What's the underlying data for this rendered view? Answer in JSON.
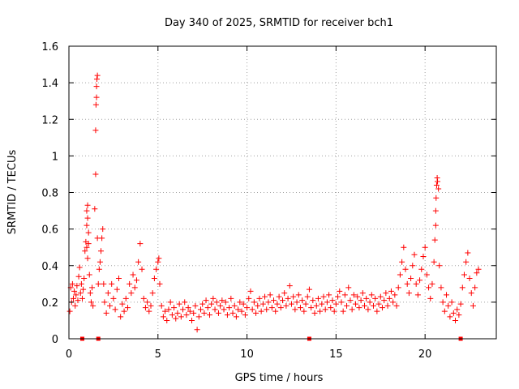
{
  "chart_data": {
    "type": "scatter",
    "title": "Day 340 of 2025, SRMTID for receiver bch1",
    "xlabel": "GPS time / hours",
    "ylabel": "SRMTID / TECUs",
    "xlim": [
      0,
      24
    ],
    "ylim": [
      0,
      1.6
    ],
    "xticks": [
      0,
      5,
      10,
      15,
      20
    ],
    "xtick_labels": [
      "0",
      "5",
      "10",
      "15",
      "20"
    ],
    "yticks": [
      0,
      0.2,
      0.4,
      0.6,
      0.8,
      1.0,
      1.2,
      1.4,
      1.6
    ],
    "ytick_labels": [
      "0",
      "0.2",
      "0.4",
      "0.6",
      "0.8",
      "1",
      "1.2",
      "1.4",
      "1.6"
    ],
    "grid": true,
    "marker": "plus",
    "color": "#ff0000",
    "markers_on_axis_x": [
      0.75,
      1.65,
      13.5,
      22.0
    ],
    "series": [
      {
        "name": "SRMTID",
        "points": [
          [
            0.05,
            0.15
          ],
          [
            0.1,
            0.28
          ],
          [
            0.15,
            0.2
          ],
          [
            0.2,
            0.3
          ],
          [
            0.25,
            0.22
          ],
          [
            0.3,
            0.26
          ],
          [
            0.35,
            0.18
          ],
          [
            0.4,
            0.24
          ],
          [
            0.45,
            0.29
          ],
          [
            0.5,
            0.21
          ],
          [
            0.55,
            0.34
          ],
          [
            0.6,
            0.39
          ],
          [
            0.65,
            0.25
          ],
          [
            0.7,
            0.3
          ],
          [
            0.75,
            0.22
          ],
          [
            0.8,
            0.27
          ],
          [
            0.85,
            0.33
          ],
          [
            0.9,
            0.48
          ],
          [
            0.95,
            0.53
          ],
          [
            1.0,
            0.62
          ],
          [
            1.0,
            0.7
          ],
          [
            1.05,
            0.73
          ],
          [
            1.05,
            0.66
          ],
          [
            1.1,
            0.58
          ],
          [
            1.1,
            0.52
          ],
          [
            1.0,
            0.5
          ],
          [
            1.05,
            0.44
          ],
          [
            1.15,
            0.35
          ],
          [
            1.2,
            0.25
          ],
          [
            1.25,
            0.2
          ],
          [
            1.3,
            0.28
          ],
          [
            1.35,
            0.18
          ],
          [
            1.45,
            0.71
          ],
          [
            1.5,
            0.9
          ],
          [
            1.5,
            1.14
          ],
          [
            1.52,
            1.28
          ],
          [
            1.55,
            1.32
          ],
          [
            1.55,
            1.38
          ],
          [
            1.57,
            1.42
          ],
          [
            1.6,
            1.44
          ],
          [
            1.6,
            0.55
          ],
          [
            1.65,
            0.3
          ],
          [
            1.7,
            0.38
          ],
          [
            1.75,
            0.42
          ],
          [
            1.8,
            0.48
          ],
          [
            1.85,
            0.55
          ],
          [
            1.9,
            0.6
          ],
          [
            1.95,
            0.3
          ],
          [
            2.0,
            0.2
          ],
          [
            2.1,
            0.14
          ],
          [
            2.2,
            0.25
          ],
          [
            2.3,
            0.18
          ],
          [
            2.4,
            0.3
          ],
          [
            2.5,
            0.22
          ],
          [
            2.6,
            0.16
          ],
          [
            2.7,
            0.27
          ],
          [
            2.8,
            0.33
          ],
          [
            2.9,
            0.12
          ],
          [
            3.0,
            0.19
          ],
          [
            3.1,
            0.15
          ],
          [
            3.2,
            0.22
          ],
          [
            3.3,
            0.17
          ],
          [
            3.4,
            0.3
          ],
          [
            3.5,
            0.25
          ],
          [
            3.6,
            0.35
          ],
          [
            3.7,
            0.28
          ],
          [
            3.8,
            0.32
          ],
          [
            3.9,
            0.42
          ],
          [
            4.0,
            0.52
          ],
          [
            4.1,
            0.38
          ],
          [
            4.2,
            0.22
          ],
          [
            4.3,
            0.17
          ],
          [
            4.4,
            0.2
          ],
          [
            4.5,
            0.15
          ],
          [
            4.6,
            0.18
          ],
          [
            4.7,
            0.25
          ],
          [
            4.8,
            0.33
          ],
          [
            4.9,
            0.38
          ],
          [
            5.0,
            0.42
          ],
          [
            5.05,
            0.44
          ],
          [
            5.1,
            0.3
          ],
          [
            5.2,
            0.18
          ],
          [
            5.3,
            0.12
          ],
          [
            5.4,
            0.15
          ],
          [
            5.5,
            0.1
          ],
          [
            5.6,
            0.16
          ],
          [
            5.7,
            0.2
          ],
          [
            5.8,
            0.13
          ],
          [
            5.9,
            0.17
          ],
          [
            6.0,
            0.11
          ],
          [
            6.1,
            0.14
          ],
          [
            6.2,
            0.19
          ],
          [
            6.3,
            0.12
          ],
          [
            6.4,
            0.16
          ],
          [
            6.5,
            0.2
          ],
          [
            6.6,
            0.13
          ],
          [
            6.7,
            0.17
          ],
          [
            6.8,
            0.15
          ],
          [
            6.9,
            0.1
          ],
          [
            7.0,
            0.14
          ],
          [
            7.1,
            0.18
          ],
          [
            7.2,
            0.05
          ],
          [
            7.3,
            0.12
          ],
          [
            7.4,
            0.16
          ],
          [
            7.5,
            0.19
          ],
          [
            7.6,
            0.14
          ],
          [
            7.7,
            0.21
          ],
          [
            7.8,
            0.17
          ],
          [
            7.9,
            0.13
          ],
          [
            8.0,
            0.19
          ],
          [
            8.1,
            0.22
          ],
          [
            8.2,
            0.16
          ],
          [
            8.3,
            0.2
          ],
          [
            8.4,
            0.14
          ],
          [
            8.5,
            0.18
          ],
          [
            8.6,
            0.21
          ],
          [
            8.7,
            0.16
          ],
          [
            8.8,
            0.2
          ],
          [
            8.9,
            0.13
          ],
          [
            9.0,
            0.17
          ],
          [
            9.1,
            0.22
          ],
          [
            9.2,
            0.14
          ],
          [
            9.3,
            0.18
          ],
          [
            9.4,
            0.12
          ],
          [
            9.5,
            0.16
          ],
          [
            9.6,
            0.2
          ],
          [
            9.7,
            0.15
          ],
          [
            9.8,
            0.19
          ],
          [
            9.9,
            0.13
          ],
          [
            10.0,
            0.17
          ],
          [
            10.1,
            0.22
          ],
          [
            10.2,
            0.26
          ],
          [
            10.3,
            0.16
          ],
          [
            10.4,
            0.2
          ],
          [
            10.5,
            0.14
          ],
          [
            10.6,
            0.18
          ],
          [
            10.7,
            0.22
          ],
          [
            10.8,
            0.15
          ],
          [
            10.9,
            0.19
          ],
          [
            11.0,
            0.23
          ],
          [
            11.1,
            0.16
          ],
          [
            11.2,
            0.2
          ],
          [
            11.3,
            0.24
          ],
          [
            11.4,
            0.17
          ],
          [
            11.5,
            0.21
          ],
          [
            11.6,
            0.15
          ],
          [
            11.7,
            0.19
          ],
          [
            11.8,
            0.23
          ],
          [
            11.9,
            0.17
          ],
          [
            12.0,
            0.21
          ],
          [
            12.1,
            0.25
          ],
          [
            12.2,
            0.18
          ],
          [
            12.3,
            0.22
          ],
          [
            12.4,
            0.29
          ],
          [
            12.5,
            0.19
          ],
          [
            12.6,
            0.23
          ],
          [
            12.7,
            0.16
          ],
          [
            12.8,
            0.2
          ],
          [
            12.9,
            0.24
          ],
          [
            13.0,
            0.17
          ],
          [
            13.1,
            0.21
          ],
          [
            13.2,
            0.15
          ],
          [
            13.3,
            0.19
          ],
          [
            13.4,
            0.23
          ],
          [
            13.5,
            0.27
          ],
          [
            13.6,
            0.17
          ],
          [
            13.7,
            0.21
          ],
          [
            13.8,
            0.14
          ],
          [
            13.9,
            0.18
          ],
          [
            14.0,
            0.22
          ],
          [
            14.1,
            0.15
          ],
          [
            14.2,
            0.19
          ],
          [
            14.3,
            0.23
          ],
          [
            14.4,
            0.16
          ],
          [
            14.5,
            0.2
          ],
          [
            14.6,
            0.24
          ],
          [
            14.7,
            0.17
          ],
          [
            14.8,
            0.21
          ],
          [
            14.9,
            0.15
          ],
          [
            15.0,
            0.19
          ],
          [
            15.1,
            0.23
          ],
          [
            15.2,
            0.26
          ],
          [
            15.3,
            0.2
          ],
          [
            15.4,
            0.15
          ],
          [
            15.5,
            0.24
          ],
          [
            15.6,
            0.18
          ],
          [
            15.7,
            0.28
          ],
          [
            15.8,
            0.21
          ],
          [
            15.9,
            0.16
          ],
          [
            16.0,
            0.24
          ],
          [
            16.1,
            0.19
          ],
          [
            16.2,
            0.23
          ],
          [
            16.3,
            0.17
          ],
          [
            16.4,
            0.21
          ],
          [
            16.5,
            0.25
          ],
          [
            16.6,
            0.18
          ],
          [
            16.7,
            0.22
          ],
          [
            16.8,
            0.16
          ],
          [
            16.9,
            0.2
          ],
          [
            17.0,
            0.24
          ],
          [
            17.1,
            0.18
          ],
          [
            17.2,
            0.22
          ],
          [
            17.3,
            0.15
          ],
          [
            17.4,
            0.19
          ],
          [
            17.5,
            0.23
          ],
          [
            17.6,
            0.17
          ],
          [
            17.7,
            0.21
          ],
          [
            17.8,
            0.25
          ],
          [
            17.9,
            0.18
          ],
          [
            18.0,
            0.22
          ],
          [
            18.1,
            0.26
          ],
          [
            18.2,
            0.2
          ],
          [
            18.3,
            0.24
          ],
          [
            18.4,
            0.18
          ],
          [
            18.5,
            0.28
          ],
          [
            18.6,
            0.35
          ],
          [
            18.7,
            0.42
          ],
          [
            18.8,
            0.5
          ],
          [
            18.9,
            0.38
          ],
          [
            19.0,
            0.3
          ],
          [
            19.1,
            0.25
          ],
          [
            19.2,
            0.33
          ],
          [
            19.3,
            0.4
          ],
          [
            19.4,
            0.46
          ],
          [
            19.5,
            0.3
          ],
          [
            19.6,
            0.24
          ],
          [
            19.7,
            0.32
          ],
          [
            19.8,
            0.38
          ],
          [
            19.9,
            0.45
          ],
          [
            20.0,
            0.5
          ],
          [
            20.1,
            0.35
          ],
          [
            20.2,
            0.28
          ],
          [
            20.3,
            0.22
          ],
          [
            20.4,
            0.3
          ],
          [
            20.5,
            0.42
          ],
          [
            20.55,
            0.54
          ],
          [
            20.6,
            0.62
          ],
          [
            20.6,
            0.7
          ],
          [
            20.62,
            0.77
          ],
          [
            20.65,
            0.84
          ],
          [
            20.68,
            0.88
          ],
          [
            20.7,
            0.86
          ],
          [
            20.75,
            0.82
          ],
          [
            20.8,
            0.4
          ],
          [
            20.9,
            0.28
          ],
          [
            21.0,
            0.2
          ],
          [
            21.1,
            0.15
          ],
          [
            21.2,
            0.24
          ],
          [
            21.3,
            0.18
          ],
          [
            21.4,
            0.12
          ],
          [
            21.5,
            0.2
          ],
          [
            21.6,
            0.14
          ],
          [
            21.7,
            0.1
          ],
          [
            21.8,
            0.16
          ],
          [
            21.9,
            0.13
          ],
          [
            22.0,
            0.19
          ],
          [
            22.1,
            0.28
          ],
          [
            22.2,
            0.35
          ],
          [
            22.3,
            0.42
          ],
          [
            22.4,
            0.47
          ],
          [
            22.5,
            0.33
          ],
          [
            22.6,
            0.25
          ],
          [
            22.7,
            0.18
          ],
          [
            22.8,
            0.28
          ],
          [
            22.9,
            0.36
          ],
          [
            23.0,
            0.38
          ]
        ]
      }
    ]
  }
}
